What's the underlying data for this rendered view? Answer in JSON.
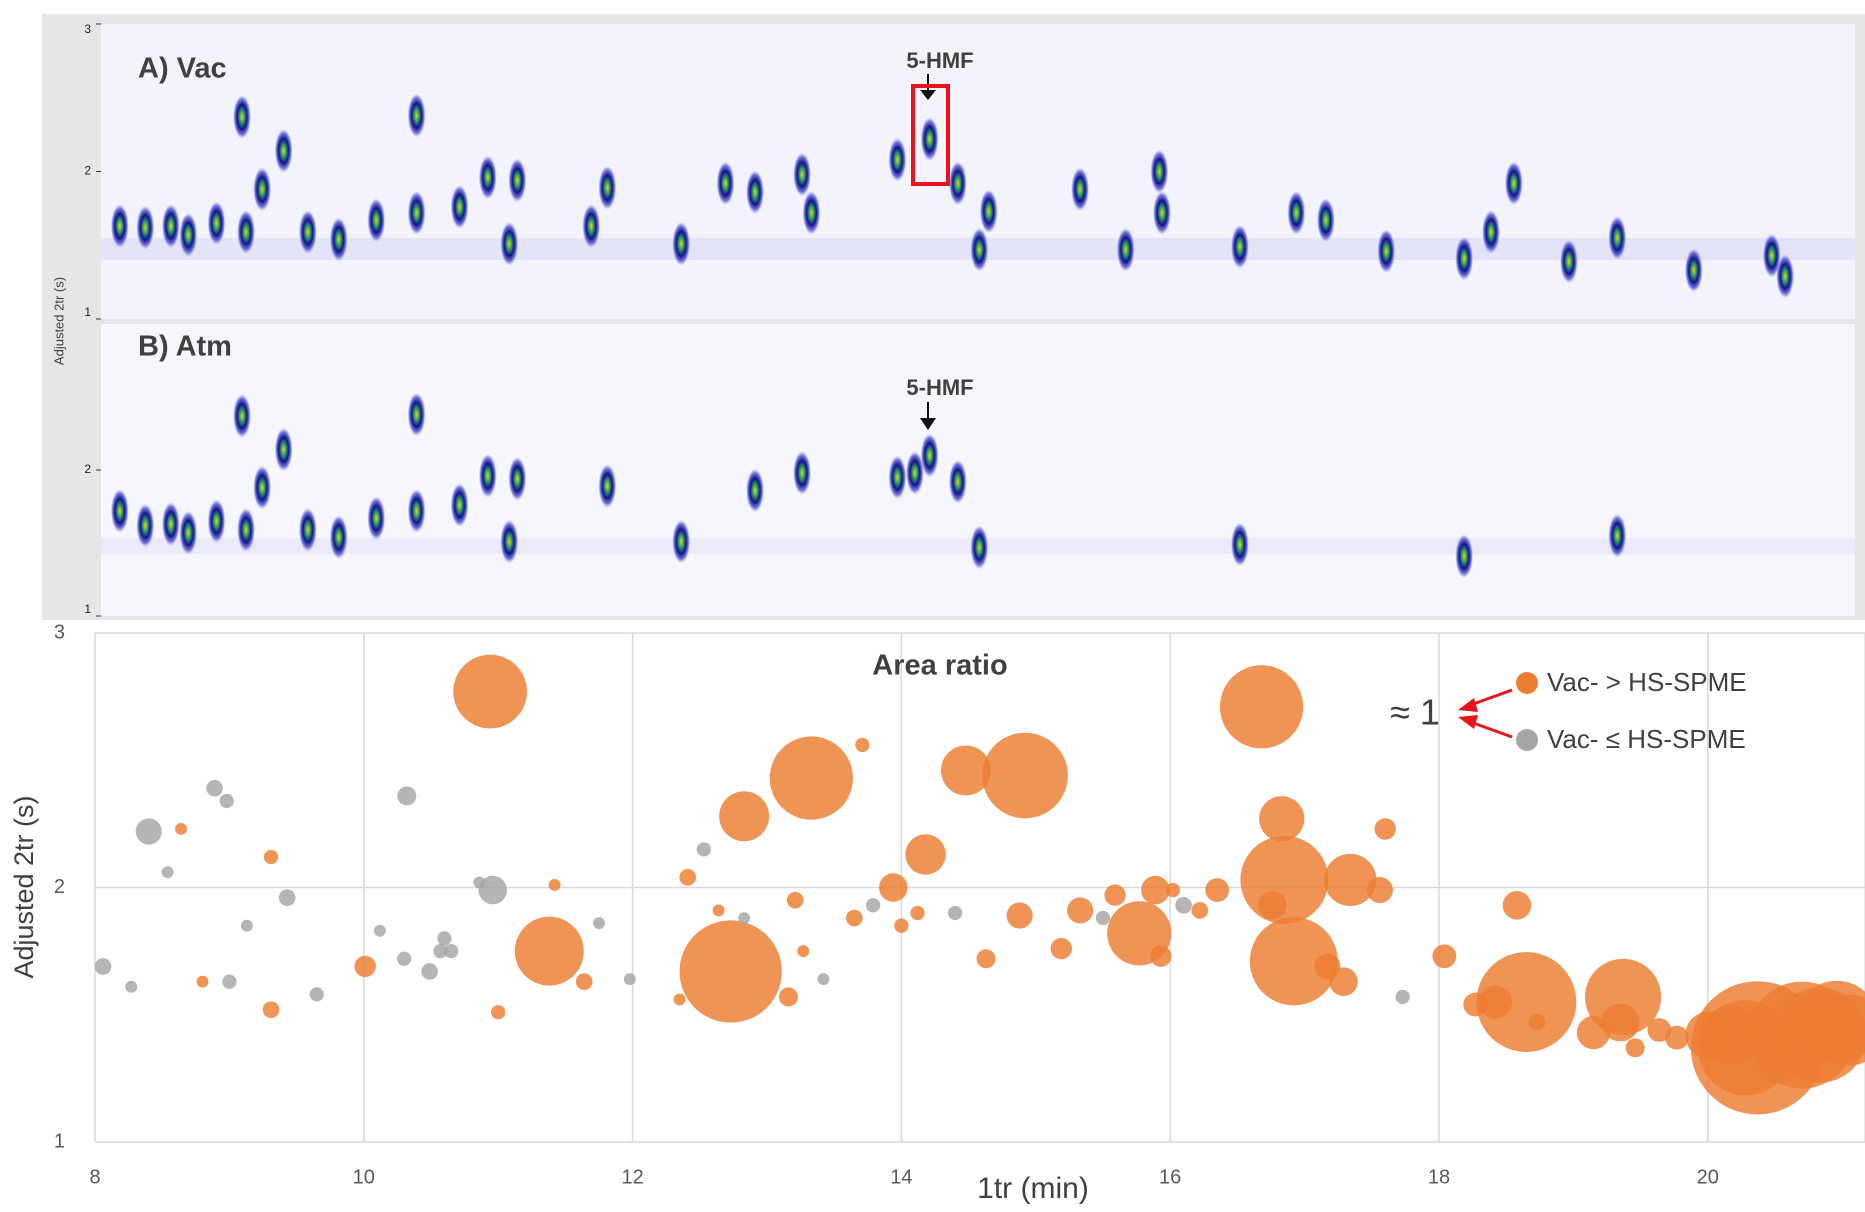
{
  "chart_data": [
    {
      "type": "contour",
      "label": "A) Vac",
      "annotation": "5-HMF",
      "ylabel": "Adjusted 2tr (s)",
      "xlim": [
        8.04,
        21.1
      ],
      "ylim": [
        1,
        3
      ],
      "yticks": [
        1,
        2,
        3
      ],
      "x": [
        8.18,
        8.37,
        8.56,
        8.69,
        8.9,
        9.09,
        9.12,
        9.24,
        9.4,
        9.58,
        9.81,
        10.09,
        10.39,
        10.39,
        10.71,
        10.92,
        11.14,
        11.08,
        11.69,
        11.81,
        12.36,
        12.69,
        12.91,
        13.26,
        13.33,
        13.97,
        14.21,
        14.42,
        14.65,
        14.58,
        15.33,
        15.67,
        15.92,
        15.94,
        16.52,
        16.94,
        17.16,
        17.61,
        18.19,
        18.39,
        18.56,
        18.97,
        19.33,
        19.9,
        20.48,
        20.58
      ],
      "y": [
        1.63,
        1.62,
        1.63,
        1.57,
        1.65,
        2.37,
        1.59,
        1.88,
        2.14,
        1.59,
        1.54,
        1.67,
        2.38,
        1.72,
        1.76,
        1.96,
        1.94,
        1.51,
        1.63,
        1.89,
        1.51,
        1.92,
        1.86,
        1.98,
        1.72,
        2.08,
        2.22,
        1.92,
        1.73,
        1.47,
        1.88,
        1.47,
        2.0,
        1.72,
        1.49,
        1.72,
        1.67,
        1.46,
        1.41,
        1.59,
        1.92,
        1.39,
        1.55,
        1.33,
        1.43,
        1.29
      ]
    },
    {
      "type": "contour",
      "label": "B) Atm",
      "annotation": "5-HMF",
      "xlim": [
        8.04,
        21.1
      ],
      "ylim": [
        1,
        3
      ],
      "yticks": [
        1,
        2
      ],
      "x": [
        8.18,
        8.37,
        8.56,
        8.69,
        8.9,
        9.09,
        9.12,
        9.24,
        9.4,
        9.58,
        9.81,
        10.09,
        10.39,
        10.39,
        10.71,
        10.92,
        11.14,
        11.08,
        11.81,
        12.36,
        12.91,
        13.26,
        13.97,
        14.1,
        14.21,
        14.42,
        14.58,
        16.52,
        18.19,
        19.33
      ],
      "y": [
        1.72,
        1.62,
        1.63,
        1.57,
        1.65,
        2.37,
        1.59,
        1.88,
        2.14,
        1.59,
        1.54,
        1.67,
        2.38,
        1.72,
        1.76,
        1.96,
        1.94,
        1.51,
        1.89,
        1.51,
        1.86,
        1.98,
        1.95,
        1.98,
        2.1,
        1.92,
        1.47,
        1.49,
        1.41,
        1.55
      ]
    },
    {
      "type": "bubble",
      "title": "Area ratio",
      "xlabel": "1tr (min)",
      "ylabel": "Adjusted 2tr (s)",
      "annotation": "≈ 1",
      "legend": "top-right",
      "grid": true,
      "xlim": [
        8,
        21.17
      ],
      "ylim": [
        1,
        3
      ],
      "xticks": [
        8,
        10,
        12,
        14,
        16,
        18,
        20
      ],
      "yticks": [
        1,
        2,
        3
      ],
      "series": [
        {
          "name": "Vac- > HS-SPME",
          "color": "#ED7D31",
          "x": [
            10.94,
            8.64,
            9.31,
            10.01,
            8.8,
            9.31,
            11.0,
            11.42,
            11.38,
            11.64,
            12.41,
            12.64,
            12.73,
            12.35,
            12.83,
            13.16,
            13.21,
            13.27,
            13.33,
            13.71,
            13.65,
            13.94,
            14.0,
            14.12,
            14.18,
            14.48,
            14.63,
            14.88,
            14.92,
            15.19,
            15.33,
            15.59,
            15.77,
            15.89,
            15.93,
            16.02,
            16.22,
            16.35,
            16.68,
            16.83,
            16.76,
            16.85,
            16.92,
            17.17,
            17.29,
            17.34,
            17.56,
            17.6,
            18.04,
            18.27,
            18.42,
            18.58,
            18.65,
            18.73,
            19.15,
            19.35,
            19.46,
            19.37,
            19.64,
            19.77,
            20.01,
            20.17,
            20.28,
            20.37,
            20.7,
            20.83,
            20.96,
            21.05
          ],
          "y": [
            2.77,
            2.23,
            2.12,
            1.69,
            1.63,
            1.52,
            1.51,
            2.01,
            1.75,
            1.63,
            2.04,
            1.91,
            1.67,
            1.56,
            2.28,
            1.57,
            1.95,
            1.75,
            2.43,
            2.56,
            1.88,
            2.0,
            1.85,
            1.9,
            2.13,
            2.46,
            1.72,
            1.89,
            2.44,
            1.76,
            1.91,
            1.97,
            1.82,
            1.99,
            1.73,
            1.99,
            1.91,
            1.99,
            2.71,
            2.27,
            1.93,
            2.03,
            1.71,
            1.69,
            1.63,
            2.03,
            1.99,
            2.23,
            1.73,
            1.54,
            1.55,
            1.93,
            1.55,
            1.47,
            1.43,
            1.47,
            1.37,
            1.57,
            1.44,
            1.41,
            1.42,
            1.42,
            1.37,
            1.37,
            1.42,
            1.42,
            1.47,
            1.44
          ],
          "sizes": [
            31,
            5,
            6,
            9,
            5,
            7,
            6,
            5,
            29,
            7,
            7,
            5,
            43,
            5,
            21,
            8,
            7,
            5,
            35,
            6,
            7,
            12,
            6,
            6,
            17,
            21,
            8,
            11,
            36,
            9,
            11,
            9,
            27,
            12,
            9,
            6,
            7,
            10,
            35,
            19,
            12,
            37,
            37,
            11,
            12,
            22,
            11,
            9,
            10,
            10,
            14,
            12,
            42,
            7,
            14,
            16,
            8,
            32,
            10,
            10,
            20,
            25,
            40,
            56,
            45,
            40,
            35,
            30
          ]
        },
        {
          "name": "Vac- ≤ HS-SPME",
          "color": "#A5A5A5",
          "x": [
            8.06,
            8.27,
            8.4,
            8.54,
            8.89,
            8.98,
            9.0,
            9.13,
            9.43,
            9.65,
            10.12,
            10.32,
            10.3,
            10.49,
            10.57,
            10.6,
            10.65,
            10.86,
            10.96,
            11.75,
            11.98,
            12.53,
            12.83,
            13.42,
            13.79,
            14.4,
            15.5,
            16.1,
            17.73
          ],
          "y": [
            1.69,
            1.61,
            2.22,
            2.06,
            2.39,
            2.34,
            1.63,
            1.85,
            1.96,
            1.58,
            1.83,
            2.36,
            1.72,
            1.67,
            1.75,
            1.8,
            1.75,
            2.02,
            1.99,
            1.86,
            1.64,
            2.15,
            1.88,
            1.64,
            1.93,
            1.9,
            1.88,
            1.93,
            1.57
          ],
          "sizes": [
            7,
            5,
            11,
            5,
            7,
            6,
            6,
            5,
            7,
            6,
            5,
            8,
            6,
            7,
            6,
            6,
            6,
            5,
            12,
            5,
            5,
            6,
            5,
            5,
            6,
            6,
            6,
            7,
            6
          ]
        }
      ]
    }
  ]
}
